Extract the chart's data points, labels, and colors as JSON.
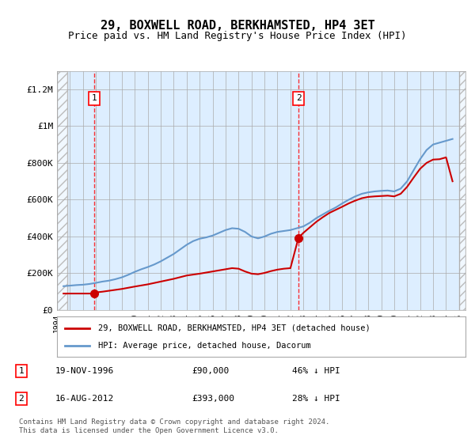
{
  "title": "29, BOXWELL ROAD, BERKHAMSTED, HP4 3ET",
  "subtitle": "Price paid vs. HM Land Registry's House Price Index (HPI)",
  "title_fontsize": 11,
  "subtitle_fontsize": 9,
  "xlabel": "",
  "ylabel": "",
  "ylim": [
    0,
    1300000
  ],
  "xlim_start": 1994.0,
  "xlim_end": 2025.5,
  "yticks": [
    0,
    200000,
    400000,
    600000,
    800000,
    1000000,
    1200000
  ],
  "ytick_labels": [
    "£0",
    "£200K",
    "£400K",
    "£600K",
    "£800K",
    "£1M",
    "£1.2M"
  ],
  "background_color": "#ffffff",
  "plot_bg_color": "#ddeeff",
  "hatch_color": "#cccccc",
  "grid_color": "#aaaaaa",
  "red_line_color": "#cc0000",
  "blue_line_color": "#6699cc",
  "transaction1_x": 1996.88,
  "transaction1_y": 90000,
  "transaction1_label": "1",
  "transaction1_date": "19-NOV-1996",
  "transaction1_price": "£90,000",
  "transaction1_hpi": "46% ↓ HPI",
  "transaction2_x": 2012.62,
  "transaction2_y": 393000,
  "transaction2_label": "2",
  "transaction2_date": "16-AUG-2012",
  "transaction2_price": "£393,000",
  "transaction2_hpi": "28% ↓ HPI",
  "legend_line1": "29, BOXWELL ROAD, BERKHAMSTED, HP4 3ET (detached house)",
  "legend_line2": "HPI: Average price, detached house, Dacorum",
  "footnote": "Contains HM Land Registry data © Crown copyright and database right 2024.\nThis data is licensed under the Open Government Licence v3.0.",
  "hpi_years": [
    1994.5,
    1995.0,
    1995.5,
    1996.0,
    1996.5,
    1997.0,
    1997.5,
    1998.0,
    1998.5,
    1999.0,
    1999.5,
    2000.0,
    2000.5,
    2001.0,
    2001.5,
    2002.0,
    2002.5,
    2003.0,
    2003.5,
    2004.0,
    2004.5,
    2005.0,
    2005.5,
    2006.0,
    2006.5,
    2007.0,
    2007.5,
    2008.0,
    2008.5,
    2009.0,
    2009.5,
    2010.0,
    2010.5,
    2011.0,
    2011.5,
    2012.0,
    2012.5,
    2013.0,
    2013.5,
    2014.0,
    2014.5,
    2015.0,
    2015.5,
    2016.0,
    2016.5,
    2017.0,
    2017.5,
    2018.0,
    2018.5,
    2019.0,
    2019.5,
    2020.0,
    2020.5,
    2021.0,
    2021.5,
    2022.0,
    2022.5,
    2023.0,
    2023.5,
    2024.0,
    2024.5
  ],
  "hpi_values": [
    130000,
    133000,
    136000,
    138000,
    142000,
    148000,
    155000,
    160000,
    168000,
    178000,
    192000,
    208000,
    222000,
    234000,
    248000,
    265000,
    285000,
    305000,
    330000,
    355000,
    375000,
    388000,
    395000,
    405000,
    420000,
    435000,
    445000,
    442000,
    425000,
    400000,
    390000,
    400000,
    415000,
    425000,
    430000,
    435000,
    445000,
    455000,
    475000,
    500000,
    520000,
    540000,
    558000,
    580000,
    600000,
    618000,
    632000,
    640000,
    645000,
    648000,
    650000,
    645000,
    660000,
    700000,
    760000,
    820000,
    870000,
    900000,
    910000,
    920000,
    930000
  ],
  "red_years": [
    1994.5,
    1995.0,
    1995.5,
    1996.0,
    1996.5,
    1996.88,
    1997.0,
    1997.5,
    1998.0,
    1999.0,
    2000.0,
    2001.0,
    2002.0,
    2003.0,
    2004.0,
    2005.0,
    2006.0,
    2007.0,
    2007.5,
    2008.0,
    2008.5,
    2009.0,
    2009.5,
    2010.0,
    2010.5,
    2011.0,
    2011.5,
    2012.0,
    2012.62,
    2013.0,
    2013.5,
    2014.0,
    2014.5,
    2015.0,
    2015.5,
    2016.0,
    2016.5,
    2017.0,
    2017.5,
    2018.0,
    2018.5,
    2019.0,
    2019.5,
    2020.0,
    2020.5,
    2021.0,
    2021.5,
    2022.0,
    2022.5,
    2023.0,
    2023.5,
    2024.0,
    2024.5
  ],
  "red_values": [
    90000,
    90000,
    90000,
    90000,
    90000,
    90000,
    96000,
    100000,
    105000,
    115000,
    128000,
    140000,
    155000,
    170000,
    188000,
    198000,
    210000,
    222000,
    228000,
    225000,
    210000,
    198000,
    195000,
    202000,
    212000,
    220000,
    225000,
    228000,
    393000,
    420000,
    450000,
    480000,
    505000,
    528000,
    545000,
    562000,
    580000,
    595000,
    608000,
    615000,
    618000,
    620000,
    622000,
    618000,
    632000,
    670000,
    720000,
    768000,
    800000,
    818000,
    820000,
    830000,
    700000
  ]
}
